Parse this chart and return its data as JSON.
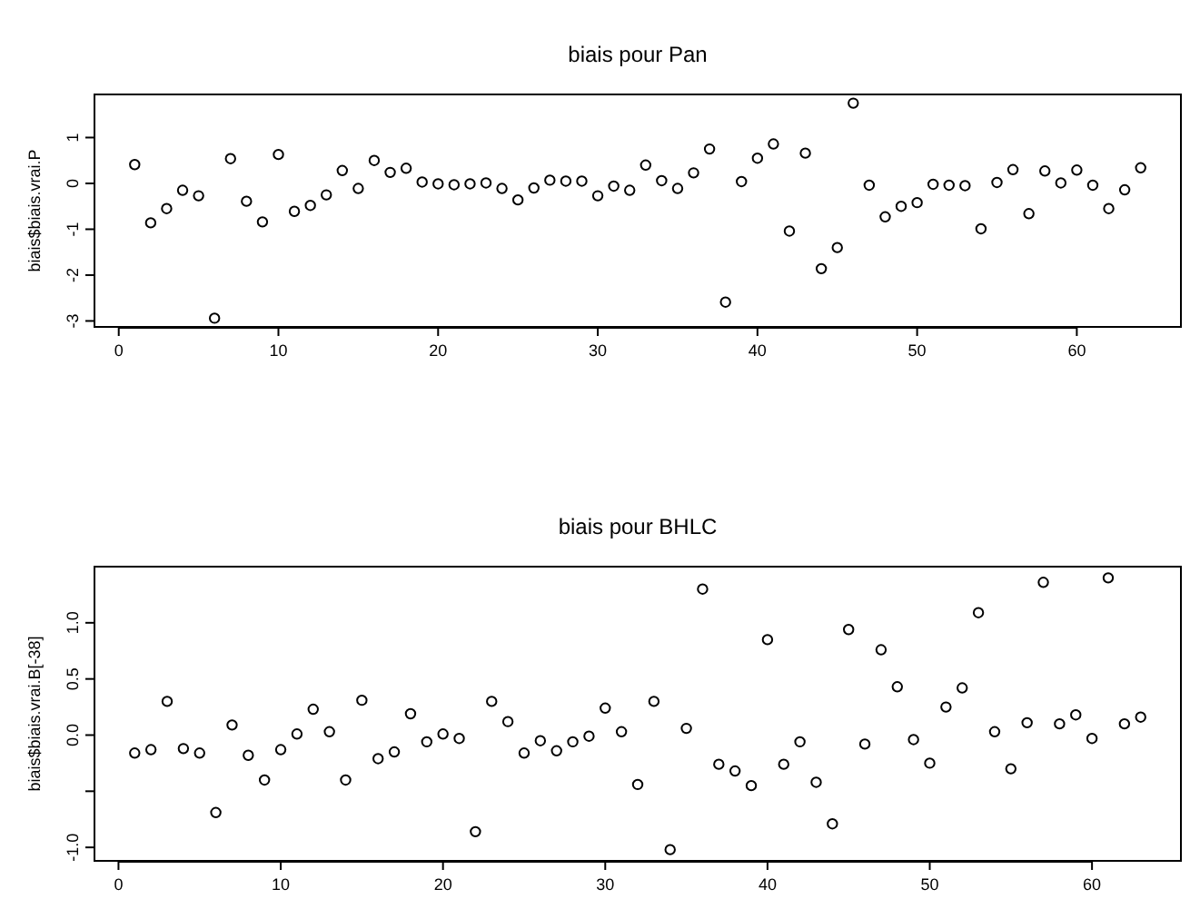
{
  "chart_data": [
    {
      "type": "scatter",
      "title": "biais pour Pan",
      "ylabel": "biais$biais.vrai.P",
      "marker": "circle",
      "grid": false,
      "x": [
        1,
        2,
        3,
        4,
        5,
        6,
        7,
        8,
        9,
        10,
        11,
        12,
        13,
        14,
        15,
        16,
        17,
        18,
        19,
        20,
        21,
        22,
        23,
        24,
        25,
        26,
        27,
        28,
        29,
        30,
        31,
        32,
        33,
        34,
        35,
        36,
        37,
        38,
        39,
        40,
        41,
        42,
        43,
        44,
        45,
        46,
        47,
        48,
        49,
        50,
        51,
        52,
        53,
        54,
        55,
        56,
        57,
        58,
        59,
        60,
        61,
        62,
        63,
        64
      ],
      "series": [
        {
          "color": "#000000",
          "values": [
            0.41,
            -0.86,
            -0.55,
            -0.15,
            -0.27,
            -2.94,
            0.54,
            -0.39,
            -0.84,
            0.63,
            -0.61,
            -0.48,
            -0.25,
            0.28,
            -0.11,
            0.5,
            0.24,
            0.33,
            0.03,
            -0.01,
            -0.03,
            -0.01,
            0.01,
            -0.11,
            -0.36,
            -0.1,
            0.07,
            0.05,
            0.05,
            -0.27,
            -0.06,
            -0.15,
            0.4,
            0.06,
            -0.11,
            0.23,
            0.75,
            -2.59,
            0.04,
            0.55,
            0.86,
            -1.04,
            0.66,
            -1.86,
            -1.4,
            1.75,
            -0.04,
            -0.73,
            -0.5,
            -0.42,
            -0.02,
            -0.04,
            -0.05,
            -0.99,
            0.02,
            0.3,
            -0.66,
            0.27,
            0.01,
            0.29,
            -0.04,
            -0.55,
            -0.14,
            0.34
          ]
        }
      ],
      "xlim": [
        -1.52,
        66.52
      ],
      "xticks": [
        0,
        10,
        20,
        30,
        40,
        50,
        60
      ],
      "ylim": [
        -3.13,
        1.94
      ],
      "yticks": [
        -3,
        -2,
        -1,
        0,
        1
      ]
    },
    {
      "type": "scatter",
      "title": "biais pour BHLC",
      "ylabel": "biais$biais.vrai.B[-38]",
      "marker": "circle",
      "grid": false,
      "x": [
        1,
        2,
        3,
        4,
        5,
        6,
        7,
        8,
        9,
        10,
        11,
        12,
        13,
        14,
        15,
        16,
        17,
        18,
        19,
        20,
        21,
        22,
        23,
        24,
        25,
        26,
        27,
        28,
        29,
        30,
        31,
        32,
        33,
        34,
        35,
        36,
        37,
        38,
        39,
        40,
        41,
        42,
        43,
        44,
        45,
        46,
        47,
        48,
        49,
        50,
        51,
        52,
        53,
        54,
        55,
        56,
        57,
        58,
        59,
        60,
        61,
        62,
        63
      ],
      "series": [
        {
          "color": "#000000",
          "values": [
            -0.16,
            -0.13,
            0.3,
            -0.12,
            -0.16,
            -0.69,
            0.09,
            -0.18,
            -0.4,
            -0.13,
            0.01,
            0.23,
            0.03,
            -0.4,
            0.31,
            -0.21,
            -0.15,
            0.19,
            -0.06,
            0.01,
            -0.03,
            -0.86,
            0.3,
            0.12,
            -0.16,
            -0.05,
            -0.14,
            -0.06,
            -0.01,
            0.24,
            0.03,
            -0.44,
            0.3,
            -1.02,
            0.06,
            1.3,
            -0.26,
            -0.32,
            -0.45,
            0.85,
            -0.26,
            -0.06,
            -0.42,
            -0.79,
            0.94,
            -0.08,
            0.76,
            0.43,
            -0.04,
            -0.25,
            0.25,
            0.42,
            1.09,
            0.03,
            -0.3,
            0.11,
            1.36,
            0.1,
            0.18,
            -0.03,
            1.4,
            0.1,
            0.16
          ]
        }
      ],
      "xlim": [
        -1.48,
        65.48
      ],
      "xticks": [
        0,
        10,
        20,
        30,
        40,
        50,
        60
      ],
      "ylim": [
        -1.12,
        1.5
      ],
      "yticks": [
        {
          "value": -1,
          "label": "-1.0"
        },
        {
          "value": -0.5,
          "label": null
        },
        {
          "value": 0,
          "label": "0.0"
        },
        {
          "value": 0.5,
          "label": "0.5"
        },
        {
          "value": 1,
          "label": "1.0"
        }
      ]
    }
  ]
}
